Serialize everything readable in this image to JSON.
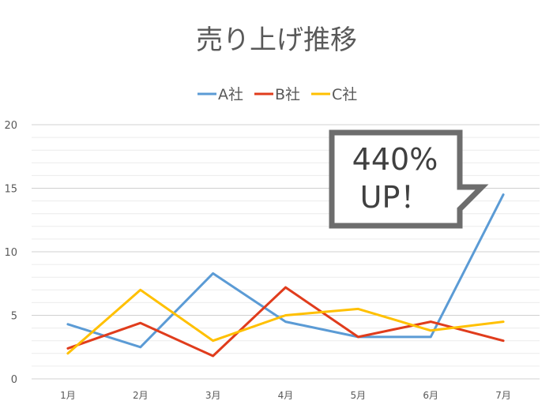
{
  "chart_data": {
    "type": "line",
    "title": "売り上げ推移",
    "categories": [
      "1月",
      "2月",
      "3月",
      "4月",
      "5月",
      "6月",
      "7月"
    ],
    "ylim": [
      0,
      20
    ],
    "yticks": [
      0,
      5,
      10,
      15,
      20
    ],
    "grid": true,
    "minor_grid": true,
    "legend_position": "top",
    "series": [
      {
        "name": "A社",
        "color": "#5b9bd5",
        "values": [
          4.3,
          2.5,
          8.3,
          4.5,
          3.3,
          3.3,
          14.5
        ]
      },
      {
        "name": "B社",
        "color": "#e03c1c",
        "values": [
          2.4,
          4.4,
          1.8,
          7.2,
          3.3,
          4.5,
          3.0
        ]
      },
      {
        "name": "C社",
        "color": "#ffc000",
        "values": [
          2.0,
          7.0,
          3.0,
          5.0,
          5.5,
          3.8,
          4.5
        ]
      }
    ],
    "annotation": {
      "line1": "440%",
      "line2": "UP！"
    }
  }
}
